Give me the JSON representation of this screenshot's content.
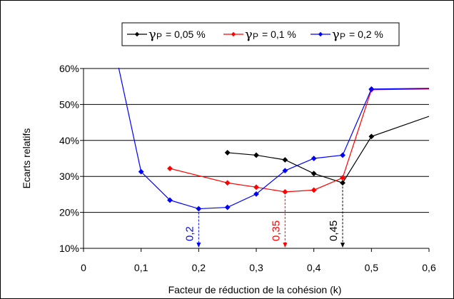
{
  "chart_data": {
    "type": "line",
    "xlabel": "Facteur de réduction de la cohésion (k)",
    "ylabel": "Ecarts relatifs",
    "xlim": [
      0,
      0.6
    ],
    "ylim": [
      0.1,
      0.6
    ],
    "x_ticks": [
      "0",
      "0,1",
      "0,2",
      "0,3",
      "0,4",
      "0,5",
      "0,6"
    ],
    "y_ticks": [
      "10%",
      "20%",
      "30%",
      "40%",
      "50%",
      "60%"
    ],
    "grid": "horizontal",
    "legend_position": "top",
    "series": [
      {
        "name_symbol": "γ",
        "name_sub": "P",
        "name_value": "= 0,05 %",
        "color": "#000000",
        "x": [
          0.25,
          0.3,
          0.35,
          0.4,
          0.45,
          0.5,
          0.6
        ],
        "y": [
          0.366,
          0.359,
          0.346,
          0.308,
          0.282,
          0.411,
          0.467
        ],
        "markers": [
          true,
          true,
          true,
          true,
          true,
          true,
          false
        ]
      },
      {
        "name_symbol": "γ",
        "name_sub": "P",
        "name_value": "= 0,1 %",
        "color": "#ff0000",
        "x": [
          0.15,
          0.25,
          0.3,
          0.35,
          0.4,
          0.45,
          0.5,
          0.6
        ],
        "y": [
          0.322,
          0.282,
          0.27,
          0.257,
          0.262,
          0.296,
          0.541,
          0.543
        ],
        "markers": [
          true,
          true,
          true,
          true,
          true,
          true,
          true,
          false
        ]
      },
      {
        "name_symbol": "γ",
        "name_sub": "P",
        "name_value": "= 0,2 %",
        "color": "#0000ff",
        "x": [
          0.06,
          0.1,
          0.15,
          0.2,
          0.25,
          0.3,
          0.35,
          0.4,
          0.45,
          0.5,
          0.6
        ],
        "y": [
          0.61,
          0.313,
          0.234,
          0.21,
          0.214,
          0.251,
          0.316,
          0.35,
          0.359,
          0.543,
          0.545
        ],
        "markers": [
          false,
          true,
          true,
          true,
          true,
          true,
          true,
          true,
          true,
          true,
          false
        ]
      }
    ],
    "annotations": [
      {
        "text": "0,2",
        "x": 0.2,
        "from_y": 0.21,
        "color": "#0000ff"
      },
      {
        "text": "0,35",
        "x": 0.35,
        "from_y": 0.257,
        "color": "#ff0000"
      },
      {
        "text": "0,45",
        "x": 0.45,
        "from_y": 0.282,
        "color": "#000000"
      }
    ]
  }
}
